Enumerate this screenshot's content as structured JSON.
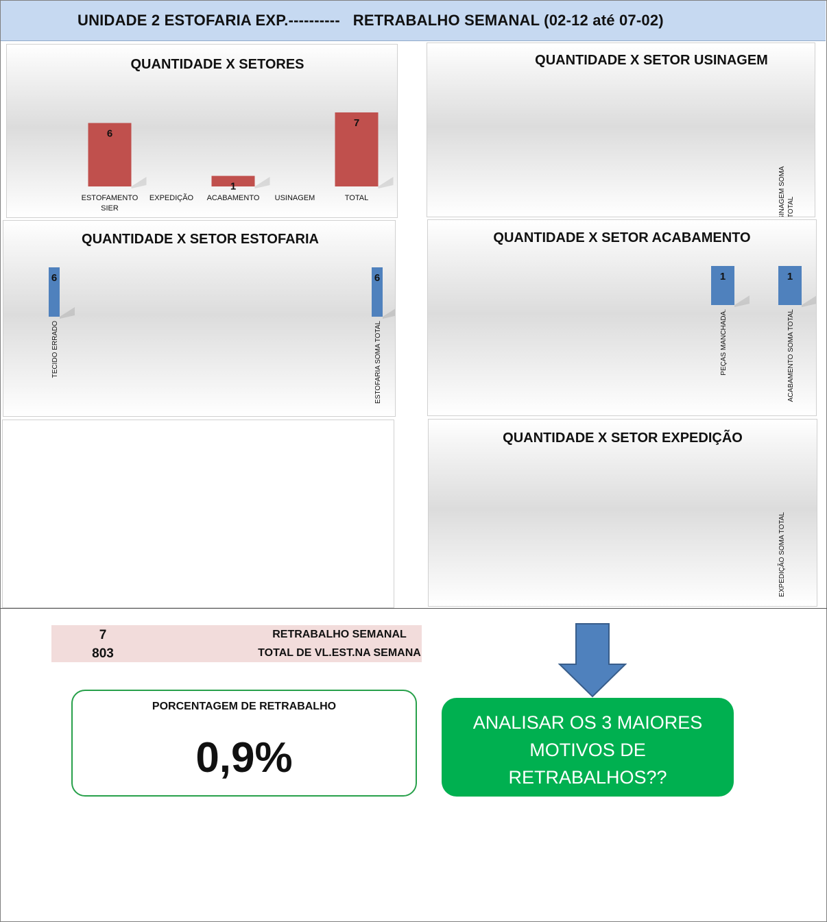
{
  "header": {
    "title_left": "UNIDADE 2 ESTOFARIA EXP.----------",
    "title_right": "RETRABALHO SEMANAL (02-12 até 07-02)"
  },
  "chart_data": [
    {
      "id": "setores",
      "type": "bar",
      "title": "QUANTIDADE X SETORES",
      "categories": [
        "ESTOFAMENTO SIER",
        "EXPEDIÇÃO",
        "ACABAMENTO",
        "USINAGEM",
        "TOTAL"
      ],
      "values": [
        6,
        null,
        1,
        null,
        7
      ],
      "color": "#c0504d"
    },
    {
      "id": "usinagem",
      "type": "bar",
      "title": "QUANTIDADE X SETOR USINAGEM",
      "categories": [
        "USINAGEM SOMA TOTAL"
      ],
      "values": [
        null
      ],
      "color": "#4f81bd"
    },
    {
      "id": "estofaria",
      "type": "bar",
      "title": "QUANTIDADE X SETOR ESTOFARIA",
      "categories": [
        "TECIDO ERRADO",
        "ESTOFARIA SOMA TOTAL"
      ],
      "values": [
        6,
        6
      ],
      "color": "#4f81bd"
    },
    {
      "id": "acabamento",
      "type": "bar",
      "title": "QUANTIDADE X SETOR ACABAMENTO",
      "categories": [
        "PEÇAS MANCHADA.",
        "ACABAMENTO SOMA TOTAL"
      ],
      "values": [
        1,
        1
      ],
      "color": "#4f81bd"
    },
    {
      "id": "expedicao",
      "type": "bar",
      "title": "QUANTIDADE X SETOR EXPEDIÇÃO",
      "categories": [
        "EXPEDIÇÃO SOMA TOTAL"
      ],
      "values": [
        null
      ],
      "color": "#4f81bd"
    }
  ],
  "summary": {
    "rows": [
      {
        "value": "7",
        "label": "RETRABALHO SEMANAL"
      },
      {
        "value": "803",
        "label": "TOTAL DE VL.EST.NA SEMANA"
      }
    ]
  },
  "percentage": {
    "label": "PORCENTAGEM DE RETRABALHO",
    "value": "0,9%"
  },
  "callout": {
    "lines": [
      "ANALISAR OS 3 MAIORES",
      "MOTIVOS DE",
      "RETRABALHOS??"
    ],
    "color": "#00b050",
    "arrow_color": "#4f81bd"
  }
}
